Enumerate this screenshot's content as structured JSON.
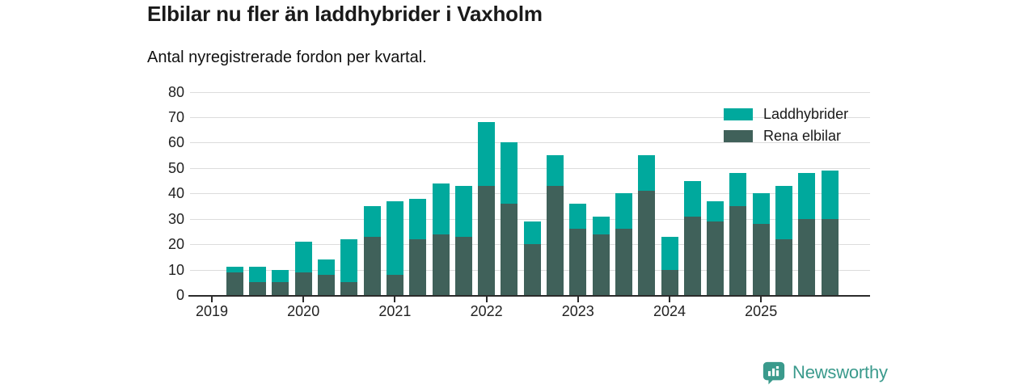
{
  "header": {
    "title": "Elbilar nu fler än laddhybrider i Vaxholm",
    "subtitle": "Antal nyregistrerade fordon per kvartal."
  },
  "brand": {
    "name": "Newsworthy"
  },
  "colors": {
    "laddhybrider": "#00a99d",
    "rena_elbilar": "#40615a",
    "grid": "#dcdcdc",
    "axis": "#2b2b2b",
    "brand_teal": "#3a9a8c"
  },
  "chart_data": {
    "type": "bar",
    "stacked": true,
    "title": "Elbilar nu fler än laddhybrider i Vaxholm",
    "subtitle": "Antal nyregistrerade fordon per kvartal.",
    "x": [
      "2019 Q2",
      "2019 Q3",
      "2019 Q4",
      "2020 Q1",
      "2020 Q2",
      "2020 Q3",
      "2020 Q4",
      "2021 Q1",
      "2021 Q2",
      "2021 Q3",
      "2021 Q4",
      "2022 Q1",
      "2022 Q2",
      "2022 Q3",
      "2022 Q4",
      "2023 Q1",
      "2023 Q2",
      "2023 Q3",
      "2023 Q4",
      "2024 Q1",
      "2024 Q2",
      "2024 Q3",
      "2024 Q4",
      "2025 Q1",
      "2025 Q2",
      "2025 Q3",
      "2025 Q4"
    ],
    "first_quarter_offset": 1,
    "series": [
      {
        "name": "Laddhybrider",
        "color": "#00a99d",
        "values": [
          2,
          6,
          5,
          12,
          6,
          17,
          12,
          29,
          16,
          20,
          20,
          25,
          24,
          9,
          12,
          10,
          7,
          14,
          14,
          13,
          14,
          8,
          13,
          12,
          21,
          18,
          19
        ]
      },
      {
        "name": "Rena elbilar",
        "color": "#40615a",
        "values": [
          9,
          5,
          5,
          9,
          8,
          5,
          23,
          8,
          22,
          24,
          23,
          43,
          36,
          20,
          43,
          26,
          24,
          26,
          41,
          10,
          31,
          29,
          35,
          28,
          22,
          30,
          30
        ]
      }
    ],
    "totals": [
      11,
      11,
      10,
      21,
      14,
      22,
      35,
      37,
      38,
      44,
      43,
      68,
      60,
      29,
      55,
      36,
      31,
      40,
      55,
      23,
      45,
      37,
      48,
      40,
      43,
      48,
      49
    ],
    "ylim": [
      0,
      80
    ],
    "yticks": [
      0,
      10,
      20,
      30,
      40,
      50,
      60,
      70,
      80
    ],
    "x_ticks": [
      "2019",
      "2020",
      "2021",
      "2022",
      "2023",
      "2024",
      "2025"
    ],
    "grid": true,
    "legend_position": "top-right"
  }
}
